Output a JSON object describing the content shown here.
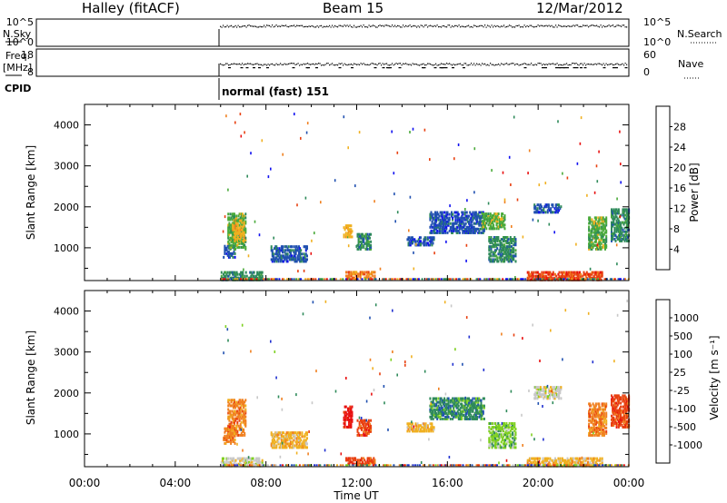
{
  "header": {
    "station": "Halley (fitACF)",
    "beam": "Beam 15",
    "date": "12/Mar/2012"
  },
  "nsky_panel": {
    "label_1": "N.Sky",
    "label_2": "N.Search",
    "ticks_left": [
      "10^5",
      "10^0"
    ],
    "ticks_right": [
      "10^5",
      "10^0"
    ]
  },
  "freq_panel": {
    "label_1": "Freq.",
    "label_2": "[MHz]",
    "label_right": "Nave",
    "ticks_left": [
      "18",
      "8"
    ],
    "ticks_right": [
      "60",
      "0"
    ]
  },
  "cpid": {
    "label": "CPID",
    "mode": "normal (fast) 151"
  },
  "colors": {
    "power": [
      "#1010f0",
      "#2050b0",
      "#2e8a5a",
      "#4aaa3a",
      "#f0b020",
      "#f08020",
      "#e84010",
      "#e81010"
    ],
    "velocity": [
      "#e81010",
      "#e84010",
      "#f08020",
      "#f0b020",
      "#c8c8c8",
      "#7ed020",
      "#2e8a5a",
      "#2050b0",
      "#2030d0"
    ]
  },
  "chart_data": [
    {
      "type": "heatmap",
      "name": "power",
      "ylabel": "Slant Range [km]",
      "yticks": [
        "1000",
        "2000",
        "3000",
        "4000"
      ],
      "ylim": [
        200,
        4500
      ],
      "xlim": [
        0,
        24
      ],
      "colorbar_label": "Power [dB]",
      "colorbar_ticks": [
        "4",
        "8",
        "12",
        "16",
        "20",
        "24",
        "28"
      ],
      "blobs": [
        {
          "t0": 6.1,
          "t1": 6.6,
          "r0": 800,
          "r1": 1100,
          "c": 1
        },
        {
          "t0": 6.3,
          "t1": 7.1,
          "r0": 1000,
          "r1": 1900,
          "c": 3
        },
        {
          "t0": 6.5,
          "t1": 7.0,
          "r0": 1200,
          "r1": 1700,
          "c": 4
        },
        {
          "t0": 6.0,
          "t1": 7.8,
          "r0": 250,
          "r1": 450,
          "c": 2
        },
        {
          "t0": 8.2,
          "t1": 9.8,
          "r0": 700,
          "r1": 1100,
          "c": 1
        },
        {
          "t0": 11.4,
          "t1": 11.8,
          "r0": 1300,
          "r1": 1600,
          "c": 4
        },
        {
          "t0": 12.0,
          "t1": 12.6,
          "r0": 1000,
          "r1": 1400,
          "c": 2
        },
        {
          "t0": 11.5,
          "t1": 12.8,
          "r0": 300,
          "r1": 450,
          "c": 5
        },
        {
          "t0": 14.2,
          "t1": 15.4,
          "r0": 1100,
          "r1": 1300,
          "c": 1
        },
        {
          "t0": 15.2,
          "t1": 17.6,
          "r0": 1400,
          "r1": 1900,
          "c": 1
        },
        {
          "t0": 17.5,
          "t1": 18.5,
          "r0": 1500,
          "r1": 1900,
          "c": 3
        },
        {
          "t0": 17.8,
          "t1": 19.0,
          "r0": 700,
          "r1": 1300,
          "c": 2
        },
        {
          "t0": 19.8,
          "t1": 21.0,
          "r0": 1900,
          "r1": 2100,
          "c": 1
        },
        {
          "t0": 19.5,
          "t1": 22.8,
          "r0": 250,
          "r1": 450,
          "c": 6
        },
        {
          "t0": 22.2,
          "t1": 23.0,
          "r0": 1000,
          "r1": 1800,
          "c": 3
        },
        {
          "t0": 23.2,
          "t1": 24.0,
          "r0": 1200,
          "r1": 2000,
          "c": 2
        }
      ]
    },
    {
      "type": "heatmap",
      "name": "velocity",
      "ylabel": "Slant Range [km]",
      "yticks": [
        "1000",
        "2000",
        "3000",
        "4000"
      ],
      "ylim": [
        200,
        4500
      ],
      "xlim": [
        0,
        24
      ],
      "xticks": [
        "00:00",
        "04:00",
        "08:00",
        "12:00",
        "16:00",
        "20:00",
        "00:00"
      ],
      "xlabel": "Time UT",
      "colorbar_label": "Velocity [m s⁻¹]",
      "colorbar_ticks": [
        "-1000",
        "-500",
        "-100",
        "-25",
        "25",
        "100",
        "500",
        "1000"
      ],
      "blobs": [
        {
          "t0": 6.1,
          "t1": 6.6,
          "r0": 800,
          "r1": 1200,
          "c": 2
        },
        {
          "t0": 6.3,
          "t1": 7.1,
          "r0": 1000,
          "r1": 1900,
          "c": 2
        },
        {
          "t0": 6.0,
          "t1": 7.8,
          "r0": 250,
          "r1": 450,
          "c": 4
        },
        {
          "t0": 8.2,
          "t1": 9.8,
          "r0": 700,
          "r1": 1100,
          "c": 3
        },
        {
          "t0": 11.4,
          "t1": 11.8,
          "r0": 1200,
          "r1": 1700,
          "c": 0
        },
        {
          "t0": 12.0,
          "t1": 12.6,
          "r0": 1000,
          "r1": 1400,
          "c": 1
        },
        {
          "t0": 11.5,
          "t1": 12.8,
          "r0": 300,
          "r1": 450,
          "c": 1
        },
        {
          "t0": 14.2,
          "t1": 15.4,
          "r0": 1100,
          "r1": 1300,
          "c": 3
        },
        {
          "t0": 15.2,
          "t1": 17.6,
          "r0": 1400,
          "r1": 1900,
          "c": 6
        },
        {
          "t0": 17.8,
          "t1": 19.0,
          "r0": 700,
          "r1": 1300,
          "c": 5
        },
        {
          "t0": 19.8,
          "t1": 21.0,
          "r0": 1900,
          "r1": 2200,
          "c": 4
        },
        {
          "t0": 19.5,
          "t1": 22.8,
          "r0": 250,
          "r1": 450,
          "c": 3
        },
        {
          "t0": 22.2,
          "t1": 23.0,
          "r0": 1000,
          "r1": 1800,
          "c": 2
        },
        {
          "t0": 23.2,
          "t1": 24.0,
          "r0": 1200,
          "r1": 2000,
          "c": 1
        }
      ]
    }
  ]
}
